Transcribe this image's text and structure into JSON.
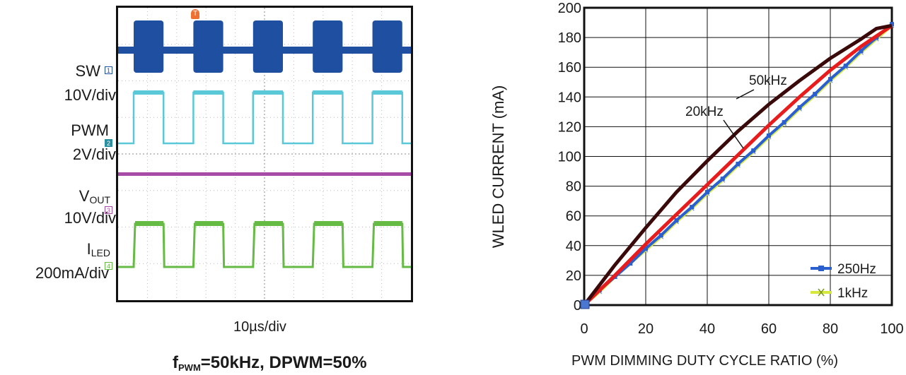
{
  "scope": {
    "channels": [
      {
        "label": "SW",
        "scale": "10V/div",
        "marker": "1",
        "color": "#1f4fa0"
      },
      {
        "label": "PWM",
        "scale": "2V/div",
        "marker": "2",
        "color": "#5bc8d8"
      },
      {
        "label": "V",
        "label_sub": "OUT",
        "scale": "10V/div",
        "marker": "3",
        "color": "#a64ca6"
      },
      {
        "label": "I",
        "label_sub": "LED",
        "scale": "200mA/div",
        "marker": "4",
        "color": "#66bb44"
      }
    ],
    "trigger_marker": "T",
    "timebase": "10µs/div",
    "caption_prefix": "f",
    "caption_sub": "PWM",
    "caption_rest": "=50kHz, DPWM=50%"
  },
  "chart_data": {
    "type": "line",
    "xlabel": "PWM DIMMING DUTY CYCLE RATIO (%)",
    "ylabel": "WLED CURRENT (mA)",
    "xlim": [
      0,
      100
    ],
    "ylim": [
      0,
      200
    ],
    "xticks": [
      "0",
      "20",
      "40",
      "60",
      "80",
      "100"
    ],
    "yticks": [
      "0",
      "20",
      "40",
      "60",
      "80",
      "100",
      "120",
      "140",
      "160",
      "180",
      "200"
    ],
    "grid": true,
    "series": [
      {
        "name": "50kHz",
        "color": "#3a0a0a",
        "x": [
          0,
          10,
          20,
          30,
          40,
          50,
          60,
          70,
          80,
          90,
          95,
          100
        ],
        "y": [
          0,
          27,
          52,
          76,
          97,
          117,
          135,
          151,
          166,
          179,
          186,
          188
        ]
      },
      {
        "name": "20kHz",
        "color": "#e81c1c",
        "x": [
          0,
          10,
          20,
          30,
          40,
          50,
          60,
          70,
          80,
          90,
          100
        ],
        "y": [
          0,
          20,
          41,
          61,
          81,
          101,
          121,
          140,
          158,
          174,
          188
        ]
      },
      {
        "name": "250Hz",
        "color": "#2a5fd0",
        "x": [
          0,
          5,
          10,
          15,
          20,
          25,
          30,
          35,
          40,
          45,
          50,
          55,
          60,
          65,
          70,
          75,
          80,
          85,
          90,
          95,
          100
        ],
        "y": [
          0,
          10,
          19,
          28,
          38,
          47,
          57,
          66,
          76,
          85,
          95,
          104,
          114,
          123,
          133,
          142,
          152,
          161,
          171,
          180,
          189
        ]
      },
      {
        "name": "1kHz",
        "color": "#d6e83c",
        "x": [
          0,
          5,
          10,
          15,
          20,
          25,
          30,
          35,
          40,
          45,
          50,
          55,
          60,
          65,
          70,
          75,
          80,
          85,
          90,
          95,
          100
        ],
        "y": [
          0,
          9,
          19,
          28,
          37,
          46,
          56,
          65,
          75,
          84,
          94,
          103,
          113,
          122,
          132,
          141,
          151,
          160,
          170,
          179,
          188
        ]
      }
    ],
    "annotations": [
      "50kHz",
      "20kHz"
    ],
    "legend": {
      "position": "bottom-right",
      "entries": [
        "250Hz",
        "1kHz"
      ]
    }
  }
}
